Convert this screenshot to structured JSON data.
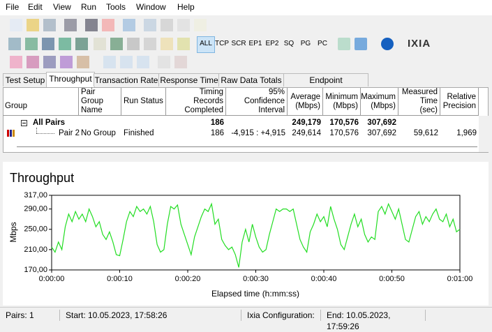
{
  "menu": [
    "File",
    "Edit",
    "View",
    "Run",
    "Tools",
    "Window",
    "Help"
  ],
  "toolbar": {
    "buttons": [
      "ALL",
      "TCP",
      "SCR",
      "EP1",
      "EP2",
      "SQ",
      "PG",
      "PC"
    ],
    "brand": "IXIA"
  },
  "tabs": [
    "Test Setup",
    "Throughput",
    "Transaction Rate",
    "Response Time",
    "Raw Data Totals",
    "Endpoint Configuration"
  ],
  "active_tab": 1,
  "table": {
    "columns": [
      "Group",
      "Pair Group Name",
      "Run Status",
      "Timing Records Completed",
      "95% Confidence Interval",
      "Average (Mbps)",
      "Minimum (Mbps)",
      "Maximum (Mbps)",
      "Measured Time (sec)",
      "Relative Precision"
    ],
    "rows": [
      [
        "All Pairs",
        null,
        null,
        "186",
        null,
        "249,179",
        "170,576",
        "307,692",
        null,
        null
      ],
      [
        "Pair 2",
        "No Group",
        "Finished",
        "186",
        "-4,915 : +4,915",
        "249,614",
        "170,576",
        "307,692",
        "59,612",
        "1,969"
      ]
    ]
  },
  "status": [
    "Pairs: 1",
    "Start: 10.05.2023, 17:58:26",
    "Ixia Configuration:",
    "End: 10.05.2023, 17:59:26"
  ],
  "chart_data": {
    "type": "line",
    "title": "Throughput",
    "y_label": "Mbps",
    "x_label": "Elapsed time (h:mm:ss)",
    "color": "#22dd22",
    "xlim": [
      0,
      60
    ],
    "ylim": [
      170,
      317
    ],
    "xticks": [
      {
        "value": 0,
        "label": "0:00:00"
      },
      {
        "value": 10,
        "label": "0:00:10"
      },
      {
        "value": 20,
        "label": "0:00:20"
      },
      {
        "value": 30,
        "label": "0:00:30"
      },
      {
        "value": 40,
        "label": "0:00:40"
      },
      {
        "value": 50,
        "label": "0:00:50"
      },
      {
        "value": 60,
        "label": "0:01:00"
      }
    ],
    "yticks": [
      {
        "value": 170,
        "label": "170,00"
      },
      {
        "value": 210,
        "label": "210,00"
      },
      {
        "value": 250,
        "label": "250,00"
      },
      {
        "value": 290,
        "label": "290,00"
      },
      {
        "value": 317,
        "label": "317,00"
      }
    ],
    "x": [
      0,
      0.5,
      1,
      1.5,
      2,
      2.5,
      3,
      3.5,
      4,
      4.5,
      5,
      5.5,
      6,
      6.5,
      7,
      7.5,
      8,
      8.5,
      9,
      9.5,
      10,
      10.5,
      11,
      11.5,
      12,
      12.5,
      13,
      13.5,
      14,
      14.5,
      15,
      15.5,
      16,
      16.5,
      17,
      17.5,
      18,
      18.5,
      19,
      19.5,
      20,
      20.5,
      21,
      21.5,
      22,
      22.5,
      23,
      23.5,
      24,
      24.5,
      25,
      25.5,
      26,
      26.5,
      27,
      27.5,
      28,
      28.5,
      29,
      29.5,
      30,
      30.5,
      31,
      31.5,
      32,
      32.5,
      33,
      33.5,
      34,
      34.5,
      35,
      35.5,
      36,
      36.5,
      37,
      37.5,
      38,
      38.5,
      39,
      39.5,
      40,
      40.5,
      41,
      41.5,
      42,
      42.5,
      43,
      43.5,
      44,
      44.5,
      45,
      45.5,
      46,
      46.5,
      47,
      47.5,
      48,
      48.5,
      49,
      49.5,
      50,
      50.5,
      51,
      51.5,
      52,
      52.5,
      53,
      53.5,
      54,
      54.5,
      55,
      55.5,
      56,
      56.5,
      57,
      57.5,
      58,
      58.5,
      59,
      59.5,
      60
    ],
    "values": [
      215,
      205,
      225,
      210,
      255,
      280,
      265,
      285,
      270,
      280,
      265,
      290,
      275,
      255,
      265,
      240,
      230,
      245,
      225,
      200,
      198,
      230,
      265,
      285,
      275,
      295,
      285,
      290,
      280,
      295,
      265,
      220,
      205,
      210,
      260,
      295,
      290,
      298,
      260,
      240,
      220,
      200,
      235,
      255,
      275,
      290,
      285,
      300,
      260,
      270,
      230,
      218,
      210,
      215,
      200,
      175,
      225,
      250,
      225,
      260,
      235,
      215,
      205,
      210,
      240,
      265,
      290,
      285,
      290,
      290,
      285,
      290,
      260,
      230,
      215,
      205,
      245,
      260,
      280,
      265,
      275,
      255,
      295,
      270,
      250,
      220,
      210,
      235,
      260,
      280,
      255,
      270,
      240,
      225,
      235,
      230,
      285,
      295,
      280,
      300,
      285,
      270,
      290,
      260,
      230,
      225,
      250,
      275,
      285,
      260,
      275,
      265,
      280,
      290,
      270,
      265,
      280,
      255,
      270,
      245,
      250
    ]
  }
}
